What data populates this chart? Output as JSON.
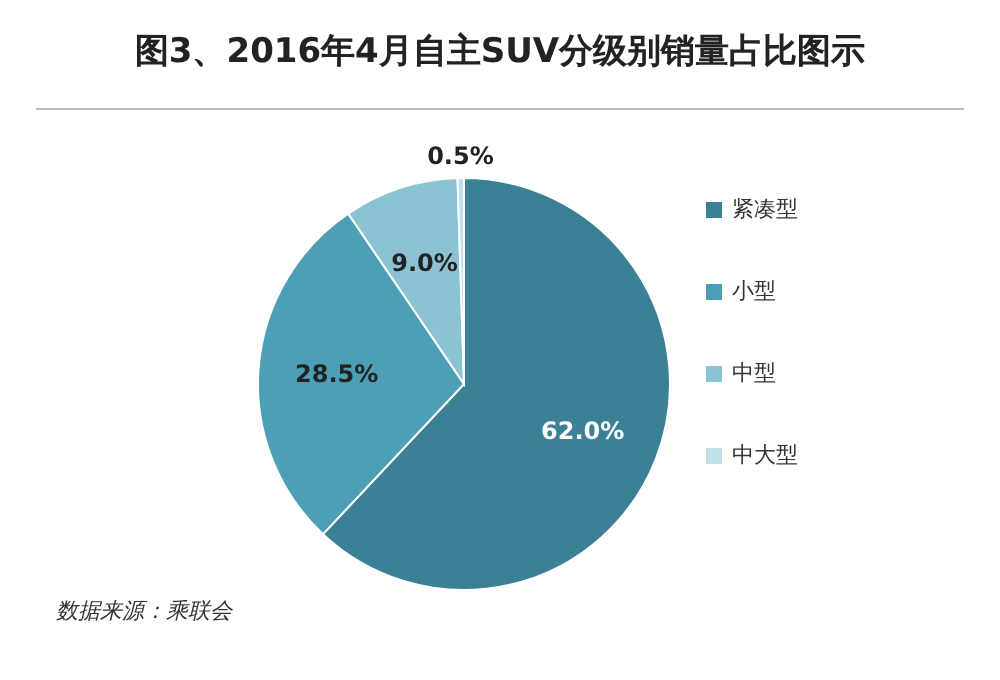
{
  "chart_data": {
    "type": "pie",
    "title": "图3、2016年4月自主SUV分级别销量占比图示",
    "categories": [
      "紧凑型",
      "小型",
      "中型",
      "中大型"
    ],
    "values": [
      62.0,
      28.5,
      9.0,
      0.5
    ],
    "colors": [
      "#3b8196",
      "#4d9fb5",
      "#8cc3d3",
      "#c3e0e8"
    ],
    "value_labels": [
      "62.0%",
      "28.5%",
      "9.0%",
      "0.5%"
    ],
    "legend": "right",
    "annotations": [
      "数据来源：乘联会"
    ]
  }
}
